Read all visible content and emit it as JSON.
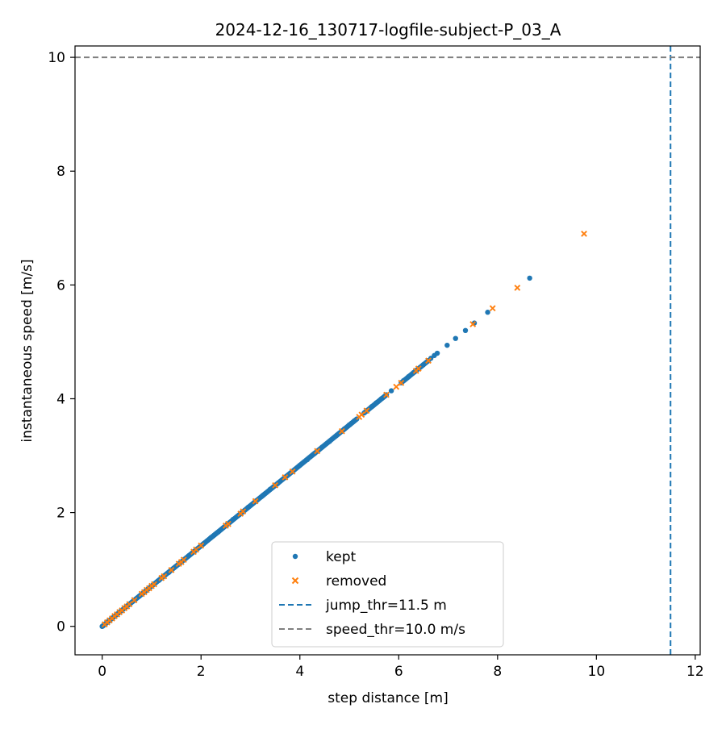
{
  "chart_data": {
    "type": "scatter",
    "title": "2024-12-16_130717-logfile-subject-P_03_A",
    "xlabel": "step distance [m]",
    "ylabel": "instantaneous speed [m/s]",
    "xlim": [
      -0.55,
      12.1
    ],
    "ylim": [
      -0.5,
      10.2
    ],
    "xticks": [
      0,
      2,
      4,
      6,
      8,
      10,
      12
    ],
    "yticks": [
      0,
      2,
      4,
      6,
      8,
      10
    ],
    "grid": false,
    "legend_position": "lower-center",
    "colors": {
      "kept": "#1f77b4",
      "removed": "#ff7f0e",
      "jump_line": "#1f77b4",
      "speed_line": "#7f7f7f"
    },
    "series": [
      {
        "name": "kept",
        "marker": "circle",
        "dense_segments": [
          [
            0.0,
            2.05
          ],
          [
            2.05,
            4.9
          ],
          [
            4.9,
            5.15
          ],
          [
            5.3,
            5.75
          ],
          [
            6.05,
            6.6
          ]
        ],
        "x": [
          0.0,
          0.02,
          0.05,
          0.08,
          0.12,
          0.15,
          0.2,
          0.35,
          0.55,
          0.75,
          0.95,
          1.15,
          1.35,
          1.55,
          1.75,
          1.9,
          2.05,
          2.2,
          2.35,
          2.5,
          2.65,
          2.8,
          2.95,
          3.1,
          3.25,
          3.4,
          3.55,
          3.7,
          3.85,
          4.0,
          4.15,
          4.3,
          4.45,
          4.6,
          4.75,
          4.9,
          5.0,
          5.1,
          5.35,
          5.45,
          5.55,
          5.65,
          5.75,
          5.85,
          6.1,
          6.2,
          6.3,
          6.4,
          6.5,
          6.6,
          6.65,
          6.72,
          6.78,
          6.98,
          7.15,
          7.35,
          7.53,
          7.8,
          8.65
        ],
        "y": [
          0.0,
          0.01,
          0.035,
          0.055,
          0.085,
          0.105,
          0.14,
          0.25,
          0.39,
          0.53,
          0.67,
          0.81,
          0.95,
          1.1,
          1.24,
          1.35,
          1.45,
          1.56,
          1.66,
          1.77,
          1.88,
          1.98,
          2.09,
          2.2,
          2.3,
          2.41,
          2.51,
          2.62,
          2.72,
          2.83,
          2.93,
          3.04,
          3.15,
          3.25,
          3.36,
          3.47,
          3.54,
          3.61,
          3.79,
          3.86,
          3.93,
          4.0,
          4.07,
          4.14,
          4.32,
          4.39,
          4.46,
          4.53,
          4.6,
          4.67,
          4.71,
          4.76,
          4.8,
          4.94,
          5.06,
          5.2,
          5.33,
          5.52,
          6.12
        ]
      },
      {
        "name": "removed",
        "marker": "x",
        "x": [
          0.05,
          0.1,
          0.15,
          0.2,
          0.25,
          0.3,
          0.35,
          0.4,
          0.45,
          0.5,
          0.55,
          0.65,
          0.8,
          0.85,
          0.9,
          0.95,
          1.0,
          1.05,
          1.2,
          1.25,
          1.4,
          1.55,
          1.6,
          1.65,
          1.85,
          1.9,
          2.0,
          2.5,
          2.55,
          2.8,
          2.85,
          3.1,
          3.5,
          3.7,
          3.85,
          4.35,
          4.85,
          5.2,
          5.25,
          5.35,
          5.75,
          5.95,
          6.05,
          6.35,
          6.4,
          6.6,
          7.5,
          7.9,
          8.4,
          9.75
        ],
        "y": [
          0.035,
          0.07,
          0.105,
          0.14,
          0.18,
          0.21,
          0.25,
          0.28,
          0.32,
          0.35,
          0.39,
          0.46,
          0.57,
          0.6,
          0.64,
          0.67,
          0.71,
          0.74,
          0.85,
          0.88,
          0.99,
          1.1,
          1.13,
          1.17,
          1.31,
          1.35,
          1.42,
          1.77,
          1.8,
          1.98,
          2.02,
          2.2,
          2.48,
          2.62,
          2.72,
          3.08,
          3.43,
          3.68,
          3.72,
          3.79,
          4.07,
          4.21,
          4.28,
          4.49,
          4.53,
          4.67,
          5.31,
          5.59,
          5.95,
          6.9
        ]
      }
    ],
    "reference_lines": [
      {
        "orientation": "vertical",
        "value": 11.5,
        "label": "jump_thr=11.5 m"
      },
      {
        "orientation": "horizontal",
        "value": 10.0,
        "label": "speed_thr=10.0 m/s"
      }
    ]
  }
}
